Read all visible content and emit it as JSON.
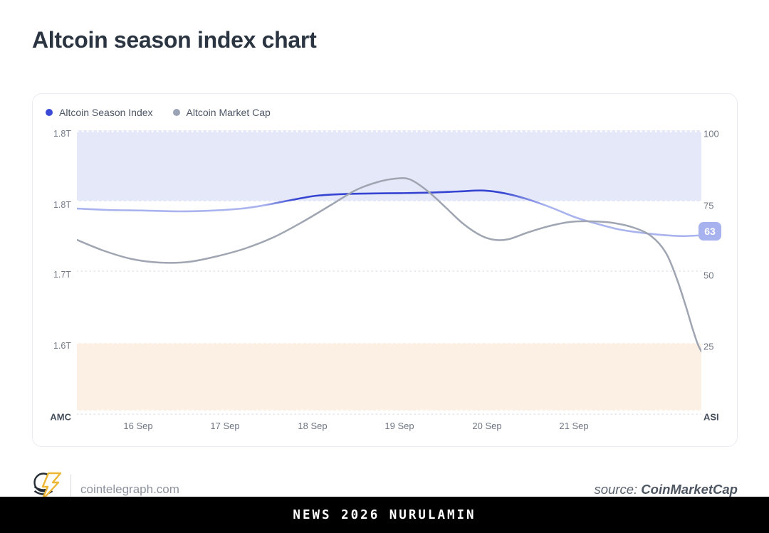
{
  "page_title": "Altcoin season index chart",
  "legend": {
    "items": [
      {
        "label": "Altcoin Season Index",
        "color": "#3b4ad6"
      },
      {
        "label": "Altcoin Market Cap",
        "color": "#9aa3b6"
      }
    ]
  },
  "chart_data": {
    "type": "line",
    "title": "Altcoin season index chart",
    "x_ticks": [
      "16 Sep",
      "17 Sep",
      "18 Sep",
      "19 Sep",
      "20 Sep",
      "21 Sep"
    ],
    "left_axis": {
      "label": "AMC",
      "ticks": [
        "1.8T",
        "1.8T",
        "1.7T",
        "1.6T"
      ],
      "max": 1.905,
      "min": 1.51,
      "unit": "USD trillions"
    },
    "right_axis": {
      "label": "ASI",
      "ticks": [
        "100",
        "75",
        "50",
        "25"
      ],
      "max": 100,
      "min": 1.25
    },
    "bands": [
      {
        "name": "altcoin-season-zone",
        "axis": "right",
        "from": 75,
        "to": 100,
        "color": "#e5e8f9"
      },
      {
        "name": "bitcoin-season-zone",
        "axis": "right",
        "from": 1.25,
        "to": 25,
        "color": "#fcf0e5"
      }
    ],
    "grid": {
      "color": "#dcdfe6",
      "band_edge_color": "#ffffff"
    },
    "current_badge": {
      "value": "63",
      "bg": "#a7b2ef",
      "text_color": "#ffffff"
    },
    "series": [
      {
        "name": "Altcoin Season Index",
        "axis": "right",
        "colors": {
          "light": "#a9b3ee",
          "dark": "#3545d1"
        },
        "points": [
          [
            0.0,
            72.5
          ],
          [
            0.048,
            72.0
          ],
          [
            0.105,
            71.8
          ],
          [
            0.162,
            71.5
          ],
          [
            0.219,
            71.8
          ],
          [
            0.265,
            72.5
          ],
          [
            0.304,
            73.8
          ],
          [
            0.344,
            75.5
          ],
          [
            0.384,
            77.0
          ],
          [
            0.43,
            77.6
          ],
          [
            0.476,
            77.8
          ],
          [
            0.521,
            77.9
          ],
          [
            0.567,
            78.1
          ],
          [
            0.612,
            78.5
          ],
          [
            0.652,
            78.8
          ],
          [
            0.686,
            77.8
          ],
          [
            0.721,
            75.8
          ],
          [
            0.76,
            72.8
          ],
          [
            0.797,
            69.5
          ],
          [
            0.835,
            67.0
          ],
          [
            0.872,
            65.0
          ],
          [
            0.911,
            63.8
          ],
          [
            0.943,
            63.1
          ],
          [
            0.971,
            62.8
          ],
          [
            1.0,
            63.1
          ]
        ]
      },
      {
        "name": "Altcoin Market Cap",
        "axis": "left",
        "color": "#9fa5b1",
        "points": [
          [
            0.0,
            1.751
          ],
          [
            0.042,
            1.736
          ],
          [
            0.088,
            1.724
          ],
          [
            0.133,
            1.719
          ],
          [
            0.179,
            1.72
          ],
          [
            0.225,
            1.728
          ],
          [
            0.27,
            1.739
          ],
          [
            0.316,
            1.755
          ],
          [
            0.361,
            1.776
          ],
          [
            0.407,
            1.8
          ],
          [
            0.447,
            1.821
          ],
          [
            0.481,
            1.832
          ],
          [
            0.51,
            1.837
          ],
          [
            0.533,
            1.836
          ],
          [
            0.561,
            1.82
          ],
          [
            0.59,
            1.797
          ],
          [
            0.618,
            1.774
          ],
          [
            0.647,
            1.757
          ],
          [
            0.669,
            1.751
          ],
          [
            0.692,
            1.752
          ],
          [
            0.721,
            1.761
          ],
          [
            0.755,
            1.77
          ],
          [
            0.789,
            1.776
          ],
          [
            0.823,
            1.777
          ],
          [
            0.857,
            1.775
          ],
          [
            0.892,
            1.768
          ],
          [
            0.92,
            1.756
          ],
          [
            0.943,
            1.733
          ],
          [
            0.96,
            1.698
          ],
          [
            0.975,
            1.658
          ],
          [
            0.986,
            1.626
          ],
          [
            0.994,
            1.605
          ],
          [
            1.0,
            1.594
          ]
        ]
      }
    ]
  },
  "footer": {
    "site": "cointelegraph.com",
    "source_prefix": "source:",
    "source_name": "CoinMarketCap"
  },
  "banner": {
    "text": "NEWS 2026 NURULAMIN"
  }
}
